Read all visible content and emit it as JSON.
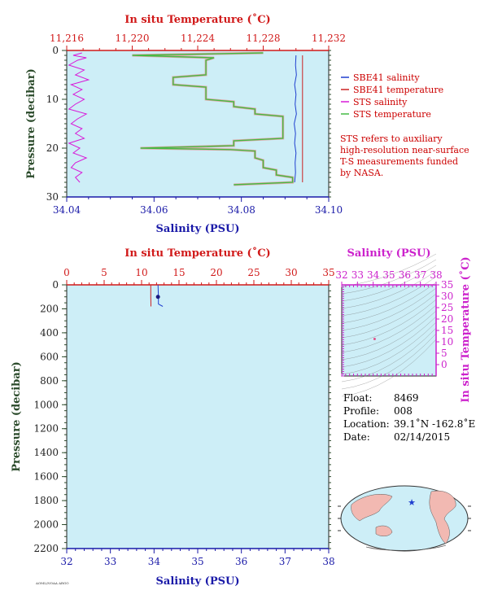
{
  "colors": {
    "plot_bg": "#cdeef7",
    "salinity_axis": "#1a1aa8",
    "temperature_axis": "#d11a1a",
    "pressure_axis": "#2a4a2a",
    "sbe_salinity": "#1f3fcf",
    "sbe_temperature": "#cc2222",
    "sts_salinity": "#d81ad8",
    "sts_temperature": "#44bb44",
    "ts_axis": "#cc22cc",
    "note": "#cc0000"
  },
  "top_plot": {
    "temp_axis_title": "In situ Temperature (˚C)",
    "temp_ticks": [
      "11,216",
      "11,220",
      "11,224",
      "11,228",
      "11,232"
    ],
    "sal_axis_title": "Salinity (PSU)",
    "sal_ticks": [
      "34.04",
      "34.06",
      "34.08",
      "34.10"
    ],
    "pressure_title": "Pressure (decibar)",
    "pressure_ticks": [
      "0",
      "10",
      "20",
      "30"
    ],
    "legend": [
      {
        "label": "SBE41 salinity",
        "color": "#1f3fcf"
      },
      {
        "label": "SBE41 temperature",
        "color": "#cc2222"
      },
      {
        "label": "STS salinity",
        "color": "#d81ad8"
      },
      {
        "label": "STS temperature",
        "color": "#44bb44"
      }
    ],
    "note_lines": [
      "STS refers to auxiliary",
      "high-resolution near-surface",
      "T-S measurements funded",
      "by NASA."
    ]
  },
  "bottom_plot": {
    "temp_axis_title": "In situ Temperature (˚C)",
    "temp_ticks": [
      "0",
      "5",
      "10",
      "15",
      "20",
      "25",
      "30",
      "35"
    ],
    "sal_axis_title": "Salinity (PSU)",
    "sal_ticks": [
      "32",
      "33",
      "34",
      "35",
      "36",
      "37",
      "38"
    ],
    "pressure_title": "Pressure (decibar)",
    "pressure_ticks": [
      "0",
      "200",
      "400",
      "600",
      "800",
      "1000",
      "1200",
      "1400",
      "1600",
      "1800",
      "2000",
      "2200"
    ]
  },
  "ts_plot": {
    "sal_axis_title": "Salinity (PSU)",
    "sal_ticks": [
      "32",
      "33",
      "34",
      "35",
      "36",
      "37",
      "38"
    ],
    "temp_axis_title": "In situ Temperature (˚C)",
    "temp_ticks": [
      "35",
      "30",
      "25",
      "20",
      "15",
      "10",
      "5",
      "0"
    ]
  },
  "float_info": {
    "float_label": "Float:",
    "float_value": "8469",
    "profile_label": "Profile:",
    "profile_value": "008",
    "location_label": "Location:",
    "location_value": "39.1˚N  -162.8˚E",
    "date_label": "Date:",
    "date_value": "02/14/2015"
  },
  "footer_small": "AOML/NOAA ARGO",
  "chart_data": [
    {
      "type": "line",
      "title": "",
      "ylabel": "Pressure (decibar)",
      "xlabel": "Salinity (PSU)",
      "x2label": "In situ Temperature (˚C)",
      "xlim": [
        34.04,
        34.1
      ],
      "x2lim": [
        11.216,
        11.232
      ],
      "ylim": [
        30,
        0
      ],
      "grid": false,
      "legend_position": "right",
      "series": [
        {
          "name": "SBE41 salinity",
          "axis": "salinity",
          "points": [
            [
              34.0925,
              1
            ],
            [
              34.0924,
              3
            ],
            [
              34.0926,
              5
            ],
            [
              34.0922,
              7
            ],
            [
              34.0925,
              9
            ],
            [
              34.0923,
              11
            ],
            [
              34.0926,
              13
            ],
            [
              34.0921,
              15
            ],
            [
              34.0924,
              17
            ],
            [
              34.0922,
              19
            ],
            [
              34.0925,
              21
            ],
            [
              34.0923,
              23
            ],
            [
              34.0924,
              25
            ],
            [
              34.0922,
              27
            ]
          ]
        },
        {
          "name": "SBE41 temperature",
          "axis": "temperature",
          "points": [
            [
              11.2304,
              1
            ],
            [
              11.2304,
              27
            ]
          ]
        },
        {
          "name": "STS salinity",
          "axis": "salinity",
          "points": [
            [
              34.0435,
              0.5
            ],
            [
              34.0415,
              1
            ],
            [
              34.0445,
              1.5
            ],
            [
              34.0425,
              2
            ],
            [
              34.0405,
              3
            ],
            [
              34.044,
              4
            ],
            [
              34.042,
              5
            ],
            [
              34.045,
              6
            ],
            [
              34.041,
              7
            ],
            [
              34.0435,
              8
            ],
            [
              34.0415,
              9
            ],
            [
              34.044,
              10
            ],
            [
              34.042,
              11
            ],
            [
              34.0405,
              12
            ],
            [
              34.0445,
              13
            ],
            [
              34.0425,
              14
            ],
            [
              34.041,
              15
            ],
            [
              34.0435,
              16
            ],
            [
              34.042,
              17
            ],
            [
              34.044,
              18
            ],
            [
              34.0405,
              19
            ],
            [
              34.043,
              20
            ],
            [
              34.0415,
              21
            ],
            [
              34.0445,
              22
            ],
            [
              34.042,
              23
            ],
            [
              34.041,
              24
            ],
            [
              34.0435,
              25
            ],
            [
              34.042,
              26
            ],
            [
              34.043,
              27
            ]
          ]
        },
        {
          "name": "STS temperature",
          "axis": "temperature",
          "points": [
            [
              11.228,
              0.5
            ],
            [
              11.22,
              1
            ],
            [
              11.225,
              1.5
            ],
            [
              11.2245,
              2
            ],
            [
              11.2245,
              3
            ],
            [
              11.2245,
              4
            ],
            [
              11.2245,
              5
            ],
            [
              11.2225,
              5.5
            ],
            [
              11.2225,
              7
            ],
            [
              11.2245,
              7.5
            ],
            [
              11.2245,
              10
            ],
            [
              11.2262,
              10.5
            ],
            [
              11.2262,
              11.5
            ],
            [
              11.2275,
              12
            ],
            [
              11.2275,
              13
            ],
            [
              11.2292,
              13.5
            ],
            [
              11.2292,
              18
            ],
            [
              11.2262,
              18.5
            ],
            [
              11.2262,
              19.5
            ],
            [
              11.2205,
              20
            ],
            [
              11.226,
              20.3
            ],
            [
              11.2275,
              20.6
            ],
            [
              11.2275,
              22
            ],
            [
              11.228,
              22.5
            ],
            [
              11.228,
              24
            ],
            [
              11.2288,
              24.5
            ],
            [
              11.2288,
              25.5
            ],
            [
              11.2298,
              26
            ],
            [
              11.2298,
              27
            ],
            [
              11.2262,
              27.5
            ]
          ]
        }
      ]
    },
    {
      "type": "line",
      "title": "",
      "ylabel": "Pressure (decibar)",
      "xlabel": "Salinity (PSU)",
      "x2label": "In situ Temperature (˚C)",
      "xlim": [
        32,
        38
      ],
      "x2lim": [
        0,
        35
      ],
      "ylim": [
        2200,
        0
      ],
      "grid": false,
      "series": [
        {
          "name": "Salinity",
          "axis": "salinity",
          "points": [
            [
              34.09,
              0
            ],
            [
              34.1,
              100
            ],
            [
              34.1,
              160
            ],
            [
              34.2,
              180
            ]
          ]
        },
        {
          "name": "Temperature",
          "axis": "temperature",
          "points": [
            [
              11.23,
              0
            ],
            [
              11.23,
              100
            ],
            [
              11.25,
              160
            ],
            [
              11.25,
              180
            ]
          ]
        }
      ]
    },
    {
      "type": "scatter",
      "title": "",
      "xlabel": "Salinity (PSU)",
      "ylabel": "In situ Temperature (˚C)",
      "xlim": [
        32,
        38
      ],
      "ylim": [
        -5,
        35
      ],
      "grid": false,
      "x": [
        34.09
      ],
      "y": [
        11.23
      ]
    }
  ]
}
